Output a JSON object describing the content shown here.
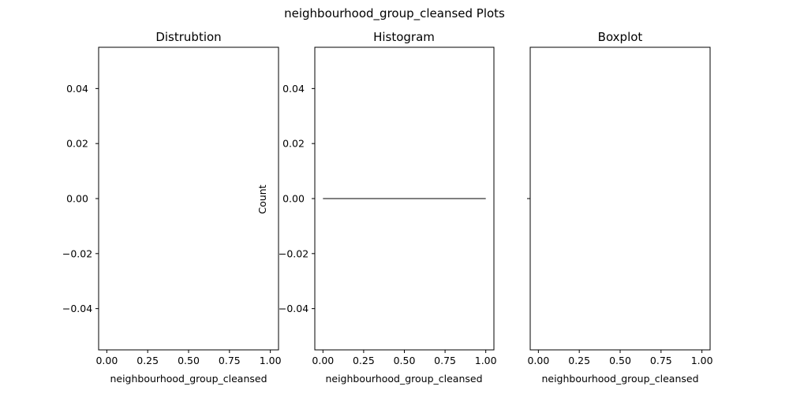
{
  "figure": {
    "suptitle": "neighbourhood_group_cleansed Plots"
  },
  "chart_data": [
    {
      "type": "line",
      "title": "Distrubtion",
      "xlabel": "neighbourhood_group_cleansed",
      "ylabel": "",
      "xlim": [
        -0.05,
        1.05
      ],
      "ylim": [
        -0.055,
        0.055
      ],
      "xticks": [
        0.0,
        0.25,
        0.5,
        0.75,
        1.0
      ],
      "xticklabels": [
        "0.00",
        "0.25",
        "0.50",
        "0.75",
        "1.00"
      ],
      "yticks": [
        0.04,
        0.02,
        0.0,
        -0.02,
        -0.04
      ],
      "yticklabels": [
        "0.04",
        "0.02",
        "0.00",
        "−0.02",
        "−0.04"
      ],
      "series": [],
      "grid": false
    },
    {
      "type": "bar",
      "title": "Histogram",
      "xlabel": "neighbourhood_group_cleansed",
      "ylabel": "Count",
      "xlim": [
        -0.05,
        1.05
      ],
      "ylim": [
        -0.055,
        0.055
      ],
      "xticks": [
        0.0,
        0.25,
        0.5,
        0.75,
        1.0
      ],
      "xticklabels": [
        "0.00",
        "0.25",
        "0.50",
        "0.75",
        "1.00"
      ],
      "yticks": [
        0.04,
        0.02,
        0.0,
        -0.02,
        -0.04
      ],
      "yticklabels": [
        "0.04",
        "0.02",
        "0.00",
        "−0.02",
        "−0.04"
      ],
      "series": [
        {
          "x": [
            0.0,
            1.0
          ],
          "values": [
            0.0,
            0.0
          ]
        }
      ],
      "grid": false
    },
    {
      "type": "box",
      "title": "Boxplot",
      "xlabel": "neighbourhood_group_cleansed",
      "ylabel": "",
      "xlim": [
        -0.05,
        1.05
      ],
      "xticks": [
        0.0,
        0.25,
        0.5,
        0.75,
        1.0
      ],
      "xticklabels": [
        "0.00",
        "0.25",
        "0.50",
        "0.75",
        "1.00"
      ],
      "yticks": [
        0
      ],
      "yticklabels": [
        ""
      ],
      "series": [],
      "grid": false
    }
  ]
}
